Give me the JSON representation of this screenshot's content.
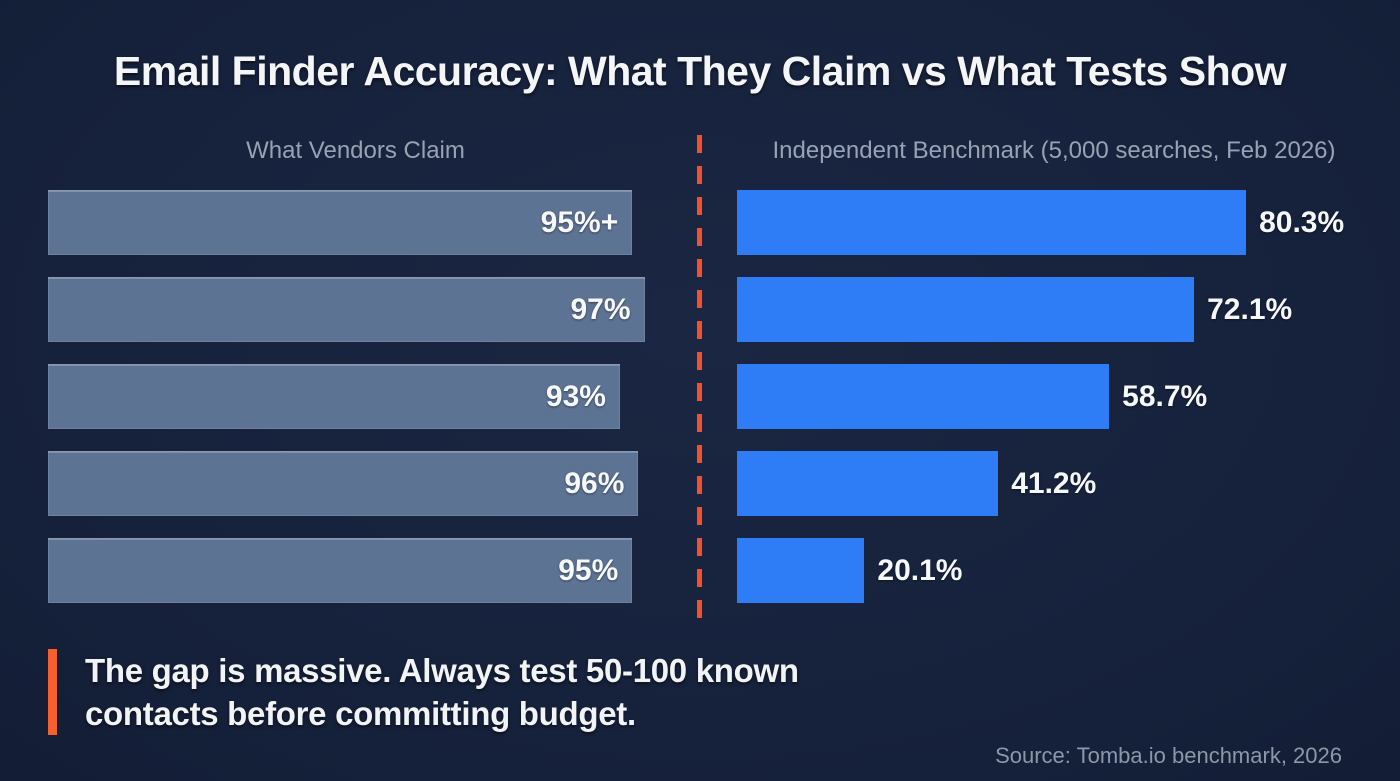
{
  "title": "Email Finder Accuracy: What They Claim vs What Tests Show",
  "chart_data": {
    "type": "bar",
    "orientation": "horizontal",
    "xlim": [
      0,
      100
    ],
    "grid": false,
    "legend": "none",
    "panels": [
      {
        "title": "What Vendors Claim",
        "bar_color": "#5d7394",
        "label_position": "inside",
        "bars": [
          {
            "label": "95%+",
            "value": 95
          },
          {
            "label": "97%",
            "value": 97
          },
          {
            "label": "93%",
            "value": 93
          },
          {
            "label": "96%",
            "value": 96
          },
          {
            "label": "95%",
            "value": 95
          }
        ]
      },
      {
        "title": "Independent Benchmark (5,000 searches, Feb 2026)",
        "bar_color": "#2e7cf6",
        "label_position": "outside",
        "bars": [
          {
            "label": "80.3%",
            "value": 80.3
          },
          {
            "label": "72.1%",
            "value": 72.1
          },
          {
            "label": "58.7%",
            "value": 58.7
          },
          {
            "label": "41.2%",
            "value": 41.2
          },
          {
            "label": "20.1%",
            "value": 20.1
          }
        ]
      }
    ]
  },
  "divider": {
    "color": "#f4502e",
    "style": "dashed"
  },
  "callout": {
    "accent_color": "#f4612f",
    "lines": [
      "The gap is massive. Always test 50-100 known",
      "contacts before committing budget."
    ]
  },
  "source": "Source: Tomba.io benchmark, 2026"
}
